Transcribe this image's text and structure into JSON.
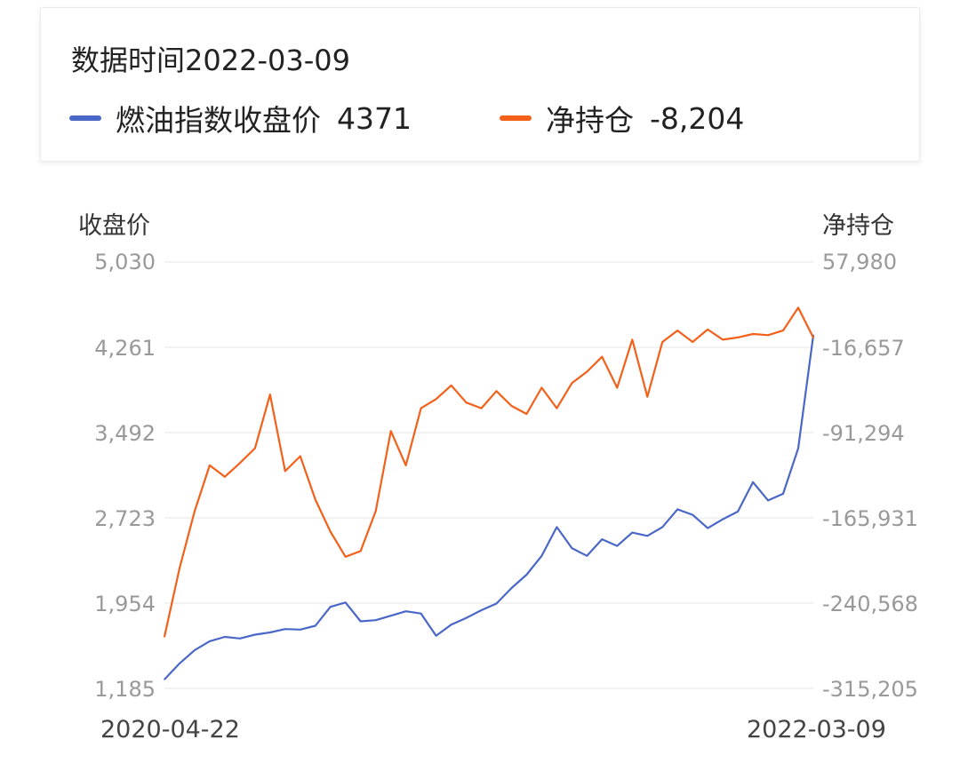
{
  "tooltip": {
    "date_text": "数据时间2022-03-09",
    "series": [
      {
        "name": "燃油指数收盘价",
        "value": "4371",
        "color": "#4a67c8"
      },
      {
        "name": "净持仓",
        "value": "-8,204",
        "color": "#f2601a"
      }
    ]
  },
  "axes": {
    "left_title": "收盘价",
    "right_title": "净持仓",
    "left_ticks": [
      "5,030",
      "4,261",
      "3,492",
      "2,723",
      "1,954",
      "1,185"
    ],
    "right_ticks": [
      "57,980",
      "-16,657",
      "-91,294",
      "-165,931",
      "-240,568",
      "-315,205"
    ],
    "x_start": "2020-04-22",
    "x_end": "2022-03-09"
  },
  "chart_data": {
    "type": "line",
    "x": [
      "2020-04-22",
      "2020-05-07",
      "2020-05-26",
      "2020-06-10",
      "2020-06-25",
      "2020-07-10",
      "2020-07-27",
      "2020-08-11",
      "2020-08-26",
      "2020-09-10",
      "2020-09-25",
      "2020-10-15",
      "2020-10-30",
      "2020-11-16",
      "2020-12-01",
      "2020-12-16",
      "2020-12-31",
      "2021-01-15",
      "2021-02-01",
      "2021-02-19",
      "2021-03-08",
      "2021-03-23",
      "2021-04-08",
      "2021-04-23",
      "2021-05-12",
      "2021-05-27",
      "2021-06-11",
      "2021-06-29",
      "2021-07-14",
      "2021-07-29",
      "2021-08-13",
      "2021-08-30",
      "2021-09-14",
      "2021-09-30",
      "2021-10-21",
      "2021-11-05",
      "2021-11-22",
      "2021-12-07",
      "2021-12-22",
      "2022-01-07",
      "2022-01-24",
      "2022-02-15",
      "2022-03-02",
      "2022-03-09"
    ],
    "series": [
      {
        "name": "燃油指数收盘价",
        "color": "#4a67c8",
        "axis": "left",
        "values": [
          1266,
          1410,
          1530,
          1610,
          1650,
          1635,
          1670,
          1690,
          1720,
          1715,
          1750,
          1920,
          1960,
          1790,
          1800,
          1840,
          1880,
          1860,
          1660,
          1760,
          1820,
          1890,
          1950,
          2090,
          2210,
          2380,
          2640,
          2450,
          2380,
          2530,
          2470,
          2590,
          2560,
          2640,
          2800,
          2750,
          2630,
          2710,
          2780,
          3045,
          2880,
          2940,
          3350,
          4371
        ]
      },
      {
        "name": "净持仓",
        "color": "#f2601a",
        "axis": "right",
        "values": [
          -270000,
          -210000,
          -160000,
          -120000,
          -130000,
          -118000,
          -105000,
          -58000,
          -125000,
          -112000,
          -150000,
          -178000,
          -200000,
          -195000,
          -160000,
          -90000,
          -120000,
          -70000,
          -62000,
          -50000,
          -65000,
          -70000,
          -55000,
          -68000,
          -75000,
          -52000,
          -70000,
          -48000,
          -38000,
          -25000,
          -52000,
          -10000,
          -60000,
          -12000,
          -2000,
          -12000,
          -1000,
          -10000,
          -8000,
          -5000,
          -6000,
          -2000,
          18000,
          -8204
        ]
      }
    ],
    "xlabel": "",
    "left_ylabel": "收盘价",
    "right_ylabel": "净持仓",
    "left_ylim": [
      1185,
      5030
    ],
    "right_ylim": [
      -315205,
      57980
    ],
    "grid": true
  }
}
